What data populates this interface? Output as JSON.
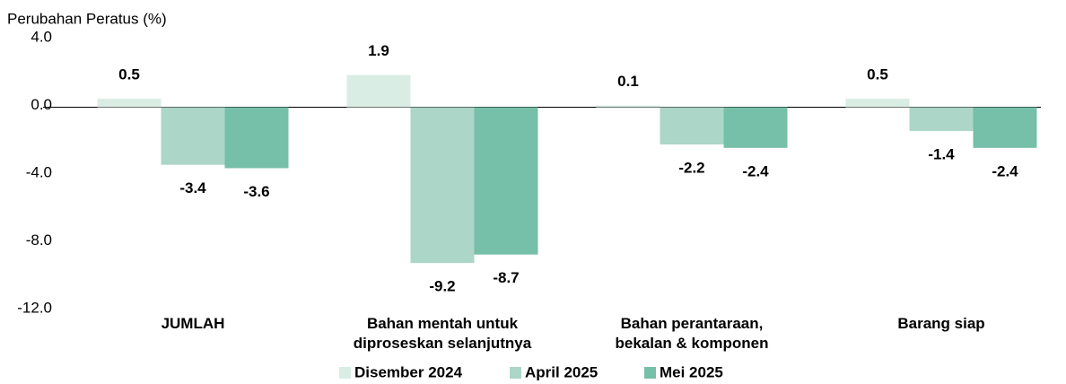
{
  "chart_data": {
    "type": "bar",
    "y_axis_label": "Perubahan Peratus (%)",
    "categories": [
      "JUMLAH",
      "Bahan mentah untuk\ndiproseskan selanjutnya",
      "Bahan perantaraan,\nbekalan & komponen",
      "Barang siap"
    ],
    "series": [
      {
        "name": "Disember 2024",
        "color": "#d9ede4",
        "values": [
          0.5,
          1.9,
          0.1,
          0.5
        ]
      },
      {
        "name": "April 2025",
        "color": "#acd6c7",
        "values": [
          -3.4,
          -9.2,
          -2.2,
          -1.4
        ]
      },
      {
        "name": "Mei 2025",
        "color": "#76bfa8",
        "values": [
          -3.6,
          -8.7,
          -2.4,
          -2.4
        ]
      }
    ],
    "ylim": [
      -12,
      4
    ],
    "yticks": [
      {
        "value": 4,
        "label": "4.0"
      },
      {
        "value": 0,
        "label": "0.0"
      },
      {
        "value": -4,
        "label": "-4.0"
      },
      {
        "value": -8,
        "label": "-8.0"
      },
      {
        "value": -12,
        "label": "-12.0"
      }
    ],
    "legend": "bottom"
  }
}
